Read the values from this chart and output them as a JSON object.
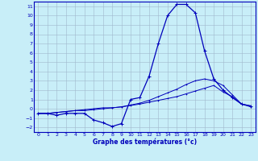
{
  "xlabel": "Graphe des températures (°c)",
  "xlim": [
    -0.5,
    23.5
  ],
  "ylim": [
    -2.5,
    11.5
  ],
  "xticks": [
    0,
    1,
    2,
    3,
    4,
    5,
    6,
    7,
    8,
    9,
    10,
    11,
    12,
    13,
    14,
    15,
    16,
    17,
    18,
    19,
    20,
    21,
    22,
    23
  ],
  "yticks": [
    -2,
    -1,
    0,
    1,
    2,
    3,
    4,
    5,
    6,
    7,
    8,
    9,
    10,
    11
  ],
  "background_color": "#c8eef8",
  "grid_color": "#a0b8cc",
  "line_color": "#0000bb",
  "line1_x": [
    0,
    1,
    2,
    3,
    4,
    5,
    6,
    7,
    8,
    9,
    10,
    11,
    12,
    13,
    14,
    15,
    16,
    17,
    18,
    19,
    20,
    21,
    22,
    23
  ],
  "line1_y": [
    -0.5,
    -0.5,
    -0.7,
    -0.5,
    -0.5,
    -0.5,
    -1.2,
    -1.5,
    -1.9,
    -1.6,
    1.0,
    1.2,
    3.5,
    7.0,
    10.0,
    11.2,
    11.2,
    10.3,
    6.2,
    3.2,
    2.0,
    1.2,
    0.5,
    0.3
  ],
  "line2_x": [
    0,
    1,
    2,
    3,
    4,
    5,
    6,
    7,
    8,
    9,
    10,
    11,
    12,
    13,
    14,
    15,
    16,
    17,
    18,
    19,
    20,
    21,
    22,
    23
  ],
  "line2_y": [
    -0.5,
    -0.5,
    -0.4,
    -0.3,
    -0.2,
    -0.2,
    -0.1,
    0.0,
    0.1,
    0.2,
    0.35,
    0.5,
    0.7,
    0.9,
    1.1,
    1.3,
    1.6,
    1.9,
    2.2,
    2.5,
    1.8,
    1.3,
    0.5,
    0.2
  ],
  "line3_x": [
    0,
    1,
    2,
    3,
    4,
    5,
    6,
    7,
    8,
    9,
    10,
    11,
    12,
    13,
    14,
    15,
    16,
    17,
    18,
    19,
    20,
    21,
    22,
    23
  ],
  "line3_y": [
    -0.5,
    -0.5,
    -0.4,
    -0.3,
    -0.2,
    -0.1,
    0.0,
    0.1,
    0.1,
    0.2,
    0.4,
    0.6,
    0.9,
    1.3,
    1.7,
    2.1,
    2.6,
    3.0,
    3.2,
    3.0,
    2.5,
    1.5,
    0.5,
    0.3
  ]
}
